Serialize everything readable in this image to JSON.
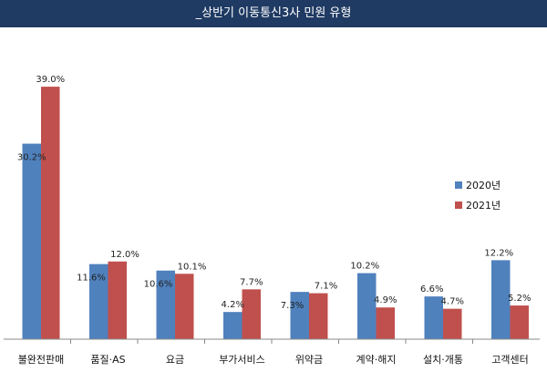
{
  "chart_data": {
    "type": "bar",
    "title": "_상반기 이동통신3사 민원 유형",
    "categories": [
      "불완전판매",
      "품질·AS",
      "요금",
      "부가서비스",
      "위약금",
      "계약·해지",
      "설치·개통",
      "고객센터"
    ],
    "series": [
      {
        "name": "2020년",
        "color": "#4f81bd",
        "values": [
          30.2,
          11.6,
          10.6,
          4.2,
          7.3,
          10.2,
          6.6,
          12.2
        ],
        "labels": [
          "30.2%",
          "11.6%",
          "10.6%",
          "4.2%",
          "7.3%",
          "10.2%",
          "6.6%",
          "12.2%"
        ]
      },
      {
        "name": "2021년",
        "color": "#c0504d",
        "values": [
          39.0,
          12.0,
          10.1,
          7.7,
          7.1,
          4.9,
          4.7,
          5.2
        ],
        "labels": [
          "39.0%",
          "12.0%",
          "10.1%",
          "7.7%",
          "7.1%",
          "4.9%",
          "4.7%",
          "5.2%"
        ]
      }
    ],
    "xlabel": "",
    "ylabel": "",
    "ylim": [
      0,
      40
    ],
    "grid": false,
    "legend": "right"
  }
}
